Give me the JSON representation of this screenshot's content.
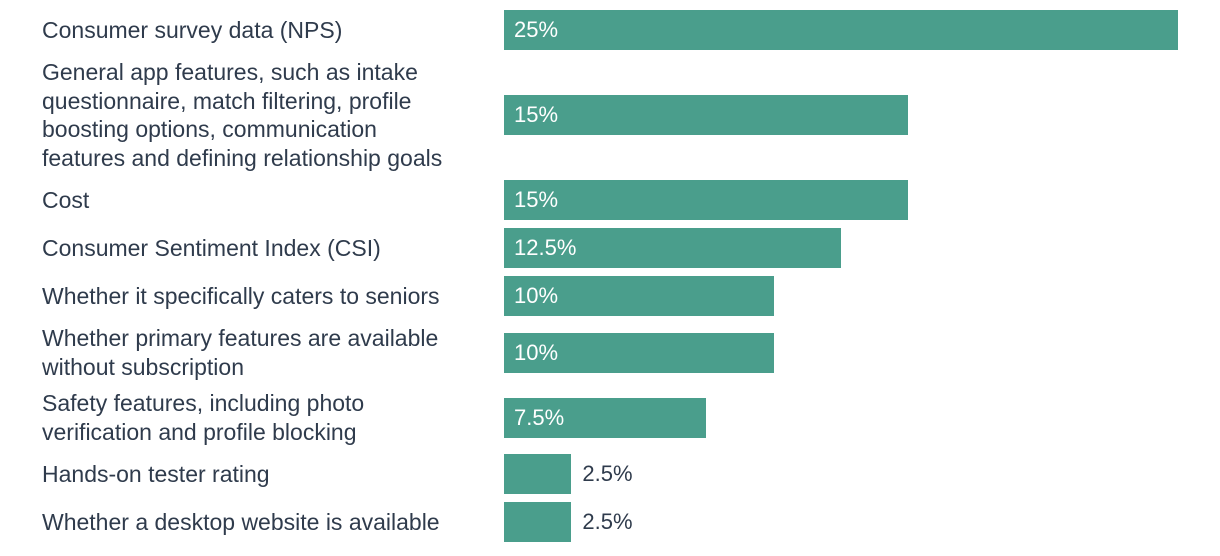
{
  "chart_data": {
    "type": "bar",
    "orientation": "horizontal",
    "title": "",
    "xlabel": "",
    "ylabel": "",
    "xlim": [
      0,
      25
    ],
    "grid": false,
    "legend": "none",
    "bar_color": "#4a9e8c",
    "categories": [
      "Consumer survey data (NPS)",
      "General app features, such as intake\nquestionnaire, match filtering, profile\nboosting options, communication\nfeatures and defining relationship goals",
      "Cost",
      "Consumer Sentiment Index (CSI)",
      "Whether it specifically caters to seniors",
      "Whether primary features are available\nwithout subscription",
      "Safety features, including photo\nverification and profile blocking",
      "Hands-on tester rating",
      "Whether a desktop website is available"
    ],
    "values": [
      25,
      15,
      15,
      12.5,
      10,
      10,
      7.5,
      2.5,
      2.5
    ],
    "value_labels": [
      "25%",
      "15%",
      "15%",
      "12.5%",
      "10%",
      "10%",
      "7.5%",
      "2.5%",
      "2.5%"
    ]
  }
}
